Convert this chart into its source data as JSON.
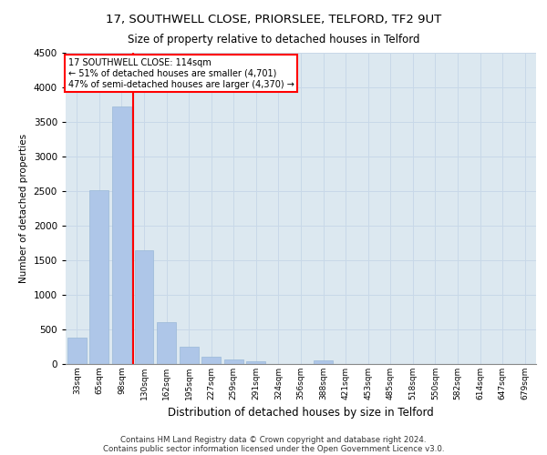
{
  "title1": "17, SOUTHWELL CLOSE, PRIORSLEE, TELFORD, TF2 9UT",
  "title2": "Size of property relative to detached houses in Telford",
  "xlabel": "Distribution of detached houses by size in Telford",
  "ylabel": "Number of detached properties",
  "categories": [
    "33sqm",
    "65sqm",
    "98sqm",
    "130sqm",
    "162sqm",
    "195sqm",
    "227sqm",
    "259sqm",
    "291sqm",
    "324sqm",
    "356sqm",
    "388sqm",
    "421sqm",
    "453sqm",
    "485sqm",
    "518sqm",
    "550sqm",
    "582sqm",
    "614sqm",
    "647sqm",
    "679sqm"
  ],
  "values": [
    380,
    2510,
    3720,
    1640,
    600,
    245,
    105,
    60,
    45,
    0,
    0,
    55,
    0,
    0,
    0,
    0,
    0,
    0,
    0,
    0,
    0
  ],
  "bar_color": "#aec6e8",
  "bar_edge_color": "#9ab8d8",
  "vline_color": "red",
  "annotation_title": "17 SOUTHWELL CLOSE: 114sqm",
  "annotation_line2": "← 51% of detached houses are smaller (4,701)",
  "annotation_line3": "47% of semi-detached houses are larger (4,370) →",
  "annotation_box_color": "white",
  "annotation_box_edge": "red",
  "ylim": [
    0,
    4500
  ],
  "yticks": [
    0,
    500,
    1000,
    1500,
    2000,
    2500,
    3000,
    3500,
    4000,
    4500
  ],
  "grid_color": "#c8d8e8",
  "background_color": "#dce8f0",
  "footer_line1": "Contains HM Land Registry data © Crown copyright and database right 2024.",
  "footer_line2": "Contains public sector information licensed under the Open Government Licence v3.0."
}
